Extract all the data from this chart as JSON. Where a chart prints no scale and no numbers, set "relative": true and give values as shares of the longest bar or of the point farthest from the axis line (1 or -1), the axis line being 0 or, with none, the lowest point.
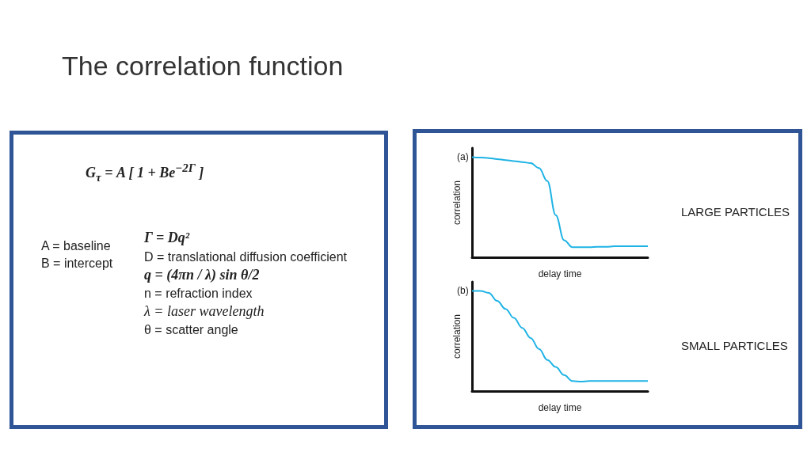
{
  "chart_data": [
    {
      "type": "other",
      "title": "The correlation function",
      "annotations": [
        "G$_{τ}$ = A [ 1 + Be$^{−2Γ}$ ]",
        "A = baseline",
        "B = intercept",
        "Γ = Dq²",
        "D = translational diffusion coefficient",
        "q = (4πn / λ) sin θ/2",
        "n = refraction index",
        "λ = laser wavelength",
        "θ = scatter angle"
      ]
    },
    {
      "type": "line",
      "title": "(a)",
      "xlabel": "delay time",
      "ylabel": "correlation",
      "relative": true,
      "annotations": [
        "LARGE PARTICLES"
      ],
      "categories": [
        null,
        null,
        null,
        null,
        null,
        null,
        null,
        null,
        null,
        null,
        null,
        null,
        null,
        null,
        null,
        null,
        null,
        null,
        null,
        null,
        null,
        null
      ],
      "series": [
        {
          "color": "#1fb3e5",
          "values": [
            1.0,
            0.995,
            0.99,
            0.98,
            0.97,
            0.96,
            0.95,
            0.94,
            0.89,
            0.76,
            0.42,
            0.17,
            0.1,
            0.1,
            0.1,
            0.105,
            0.105,
            0.11,
            0.11,
            0.11,
            0.11,
            0.11
          ]
        }
      ]
    },
    {
      "type": "line",
      "title": "(b)",
      "xlabel": "delay time",
      "ylabel": "correlation",
      "relative": true,
      "annotations": [
        "SMALL PARTICLES"
      ],
      "categories": [
        null,
        null,
        null,
        null,
        null,
        null,
        null,
        null,
        null,
        null,
        null,
        null,
        null,
        null,
        null,
        null,
        null,
        null,
        null,
        null,
        null,
        null
      ],
      "series": [
        {
          "color": "#1fb3e5",
          "values": [
            1.0,
            1.0,
            0.98,
            0.9,
            0.82,
            0.73,
            0.63,
            0.53,
            0.42,
            0.31,
            0.24,
            0.16,
            0.1,
            0.095,
            0.1,
            0.1,
            0.1,
            0.1,
            0.1,
            0.1,
            0.1,
            0.1
          ]
        }
      ]
    }
  ]
}
